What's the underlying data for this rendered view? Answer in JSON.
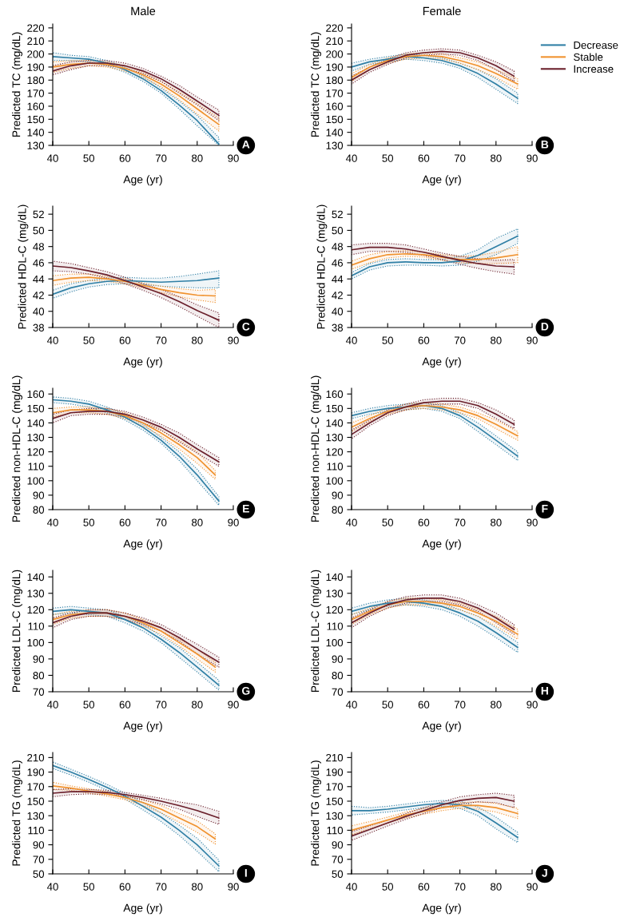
{
  "chart_data": [
    {
      "type": "line",
      "title": "Male",
      "xlabel": "Age (yr)",
      "ylabel": "Predicted TC (mg/dL)",
      "xlim": [
        40,
        90
      ],
      "xticks": [
        40,
        50,
        60,
        70,
        80,
        90
      ],
      "ylim": [
        130,
        223
      ],
      "yticks": [
        130,
        140,
        150,
        160,
        170,
        180,
        190,
        200,
        210,
        220
      ],
      "grid": false,
      "legend": false,
      "annotations": [
        "A"
      ],
      "x": [
        40,
        45,
        50,
        55,
        60,
        65,
        70,
        75,
        80,
        86
      ],
      "series": [
        {
          "color": "#2f7fa5",
          "values": [
            198,
            197,
            196,
            193,
            188,
            181,
            172,
            161,
            149,
            131
          ],
          "lower": [
            195,
            195,
            194,
            191,
            186,
            179,
            170,
            158,
            145,
            130
          ],
          "upper": [
            201,
            199,
            198,
            195,
            190,
            183,
            174,
            164,
            153,
            136
          ]
        },
        {
          "color": "#f0922e",
          "values": [
            190,
            192,
            193,
            192,
            189,
            184,
            177,
            168,
            158,
            146
          ],
          "lower": [
            186,
            189,
            191,
            190,
            187,
            182,
            175,
            165,
            154,
            141
          ],
          "upper": [
            194,
            195,
            195,
            194,
            191,
            186,
            179,
            171,
            162,
            151
          ]
        },
        {
          "color": "#6a1f2b",
          "values": [
            187,
            191,
            193,
            193,
            191,
            187,
            181,
            173,
            164,
            153
          ],
          "lower": [
            184,
            188,
            191,
            191,
            189,
            185,
            179,
            170,
            161,
            149
          ],
          "upper": [
            191,
            194,
            195,
            195,
            193,
            189,
            183,
            176,
            167,
            157
          ]
        }
      ]
    },
    {
      "type": "line",
      "title": "Female",
      "xlabel": "Age (yr)",
      "ylabel": "Predicted TC (mg/dL)",
      "xlim": [
        40,
        90
      ],
      "xticks": [
        40,
        50,
        60,
        70,
        80,
        90
      ],
      "ylim": [
        130,
        223
      ],
      "yticks": [
        130,
        140,
        150,
        160,
        170,
        180,
        190,
        200,
        210,
        220
      ],
      "grid": false,
      "legend": "right",
      "annotations": [
        "B"
      ],
      "x": [
        40,
        45,
        50,
        55,
        60,
        65,
        70,
        75,
        80,
        86
      ],
      "series": [
        {
          "name": "Decrease",
          "color": "#2f7fa5",
          "values": [
            190,
            194,
            196,
            198,
            197,
            195,
            191,
            185,
            177,
            166
          ],
          "lower": [
            187,
            192,
            194,
            196,
            195,
            193,
            189,
            182,
            173,
            162
          ],
          "upper": [
            193,
            196,
            198,
            200,
            199,
            197,
            193,
            188,
            181,
            170
          ]
        },
        {
          "name": "Stable",
          "color": "#f0922e",
          "values": [
            182,
            190,
            195,
            198,
            199,
            198,
            195,
            191,
            185,
            177
          ],
          "lower": [
            179,
            188,
            193,
            196,
            197,
            196,
            193,
            188,
            182,
            173
          ],
          "upper": [
            185,
            192,
            197,
            200,
            201,
            200,
            197,
            194,
            188,
            181
          ]
        },
        {
          "name": "Increase",
          "color": "#6a1f2b",
          "x": [
            40,
            45,
            50,
            55,
            60,
            65,
            70,
            75,
            80,
            85
          ],
          "values": [
            180,
            188,
            194,
            199,
            201,
            202,
            201,
            197,
            191,
            183
          ],
          "lower": [
            177,
            186,
            192,
            197,
            199,
            200,
            199,
            195,
            188,
            179
          ],
          "upper": [
            183,
            190,
            196,
            201,
            203,
            204,
            203,
            199,
            194,
            187
          ]
        }
      ]
    },
    {
      "type": "line",
      "xlabel": "Age (yr)",
      "ylabel": "Predicted HDL-C (mg/dL)",
      "xlim": [
        40,
        90
      ],
      "xticks": [
        40,
        50,
        60,
        70,
        80,
        90
      ],
      "ylim": [
        38,
        53
      ],
      "yticks": [
        38,
        40,
        42,
        44,
        46,
        48,
        50,
        52
      ],
      "grid": false,
      "legend": false,
      "annotations": [
        "C"
      ],
      "x": [
        40,
        45,
        50,
        55,
        60,
        65,
        70,
        75,
        80,
        86
      ],
      "series": [
        {
          "color": "#2f7fa5",
          "values": [
            42.1,
            42.9,
            43.4,
            43.7,
            43.8,
            43.7,
            43.6,
            43.7,
            43.8,
            44.1
          ],
          "lower": [
            41.6,
            42.4,
            43.0,
            43.3,
            43.4,
            43.3,
            43.1,
            43.0,
            42.9,
            42.9
          ],
          "upper": [
            42.6,
            43.4,
            43.8,
            44.1,
            44.2,
            44.1,
            44.1,
            44.3,
            44.6,
            45.0
          ]
        },
        {
          "color": "#f0922e",
          "x": [
            40,
            45,
            50,
            55,
            60,
            65,
            70,
            75,
            80,
            85
          ],
          "values": [
            43.8,
            44.1,
            44.2,
            44.0,
            43.7,
            43.2,
            42.7,
            42.3,
            42.0,
            41.9
          ],
          "lower": [
            43.2,
            43.6,
            43.8,
            43.7,
            43.4,
            42.9,
            42.3,
            41.8,
            41.4,
            41.1
          ],
          "upper": [
            44.4,
            44.6,
            44.6,
            44.3,
            44.0,
            43.5,
            43.1,
            42.8,
            42.6,
            42.7
          ]
        },
        {
          "color": "#6a1f2b",
          "values": [
            45.6,
            45.4,
            45.0,
            44.5,
            43.8,
            43.0,
            42.2,
            41.2,
            40.1,
            38.9
          ],
          "lower": [
            45.0,
            44.9,
            44.6,
            44.1,
            43.4,
            42.6,
            41.7,
            40.6,
            39.4,
            38.0
          ],
          "upper": [
            46.2,
            45.9,
            45.4,
            44.9,
            44.2,
            43.4,
            42.7,
            41.8,
            40.8,
            39.8
          ]
        }
      ]
    },
    {
      "type": "line",
      "xlabel": "Age (yr)",
      "ylabel": "Predicted HDL-C (mg/dL)",
      "xlim": [
        40,
        90
      ],
      "xticks": [
        40,
        50,
        60,
        70,
        80,
        90
      ],
      "ylim": [
        38,
        53
      ],
      "yticks": [
        38,
        40,
        42,
        44,
        46,
        48,
        50,
        52
      ],
      "grid": false,
      "legend": false,
      "annotations": [
        "D"
      ],
      "x": [
        40,
        45,
        50,
        55,
        60,
        65,
        70,
        75,
        80,
        86
      ],
      "series": [
        {
          "color": "#2f7fa5",
          "values": [
            44.4,
            45.5,
            46.0,
            46.1,
            46.0,
            46.0,
            46.2,
            46.9,
            48.0,
            49.3
          ],
          "lower": [
            44.0,
            45.1,
            45.6,
            45.7,
            45.7,
            45.6,
            45.7,
            46.2,
            47.0,
            48.4
          ],
          "upper": [
            44.8,
            45.9,
            46.4,
            46.5,
            46.4,
            46.4,
            46.8,
            47.6,
            49.0,
            50.2
          ]
        },
        {
          "color": "#f0922e",
          "values": [
            45.7,
            46.5,
            47.0,
            47.1,
            47.0,
            46.7,
            46.4,
            46.4,
            46.6,
            47.0
          ],
          "lower": [
            45.2,
            46.0,
            46.6,
            46.8,
            46.7,
            46.3,
            46.0,
            45.9,
            45.9,
            46.0
          ],
          "upper": [
            46.2,
            47.0,
            47.4,
            47.5,
            47.3,
            47.0,
            46.8,
            46.9,
            47.3,
            48.0
          ]
        },
        {
          "color": "#6a1f2b",
          "x": [
            40,
            45,
            50,
            55,
            60,
            65,
            70,
            75,
            80,
            85
          ],
          "values": [
            47.6,
            47.9,
            47.9,
            47.7,
            47.3,
            46.8,
            46.3,
            45.9,
            45.6,
            45.5
          ],
          "lower": [
            47.0,
            47.4,
            47.4,
            47.3,
            46.9,
            46.4,
            45.8,
            45.3,
            44.9,
            44.6
          ],
          "upper": [
            48.2,
            48.4,
            48.4,
            48.2,
            47.7,
            47.2,
            46.8,
            46.5,
            46.3,
            46.4
          ]
        }
      ]
    },
    {
      "type": "line",
      "xlabel": "Age (yr)",
      "ylabel": "Predicted non-HDL-C (mg/dL)",
      "xlim": [
        40,
        90
      ],
      "xticks": [
        40,
        50,
        60,
        70,
        80,
        90
      ],
      "ylim": [
        80,
        164
      ],
      "yticks": [
        80,
        90,
        100,
        110,
        120,
        130,
        140,
        150,
        160
      ],
      "grid": false,
      "legend": false,
      "annotations": [
        "E"
      ],
      "x": [
        40,
        45,
        50,
        55,
        60,
        65,
        70,
        75,
        80,
        86
      ],
      "series": [
        {
          "color": "#2f7fa5",
          "values": [
            156,
            155,
            153,
            149,
            144,
            137,
            128,
            117,
            104,
            86
          ],
          "lower": [
            154,
            153,
            151,
            147,
            142,
            135,
            126,
            114,
            100,
            83
          ],
          "upper": [
            158,
            157,
            155,
            151,
            146,
            139,
            130,
            120,
            108,
            89
          ]
        },
        {
          "color": "#f0922e",
          "x": [
            40,
            45,
            50,
            55,
            60,
            65,
            70,
            75,
            80,
            85
          ],
          "values": [
            147,
            149,
            149,
            148,
            145,
            140,
            133,
            125,
            116,
            104
          ],
          "lower": [
            144,
            147,
            147,
            146,
            143,
            138,
            131,
            122,
            112,
            101
          ],
          "upper": [
            150,
            151,
            151,
            150,
            147,
            142,
            135,
            128,
            120,
            107
          ]
        },
        {
          "color": "#6a1f2b",
          "values": [
            143,
            147,
            148,
            148,
            146,
            142,
            137,
            130,
            122,
            113
          ],
          "lower": [
            140,
            145,
            146,
            146,
            144,
            140,
            135,
            127,
            119,
            110
          ],
          "upper": [
            146,
            149,
            150,
            150,
            148,
            144,
            139,
            133,
            125,
            116
          ]
        }
      ]
    },
    {
      "type": "line",
      "xlabel": "Age (yr)",
      "ylabel": "Predicted non-HDL-C (mg/dL)",
      "xlim": [
        40,
        90
      ],
      "xticks": [
        40,
        50,
        60,
        70,
        80,
        90
      ],
      "ylim": [
        80,
        164
      ],
      "yticks": [
        80,
        90,
        100,
        110,
        120,
        130,
        140,
        150,
        160
      ],
      "grid": false,
      "legend": false,
      "annotations": [
        "F"
      ],
      "x": [
        40,
        45,
        50,
        55,
        60,
        65,
        70,
        75,
        80,
        86
      ],
      "series": [
        {
          "color": "#2f7fa5",
          "values": [
            145,
            148,
            150,
            151,
            152,
            150,
            145,
            137,
            128,
            117
          ],
          "lower": [
            143,
            146,
            148,
            149,
            150,
            148,
            143,
            134,
            125,
            114
          ],
          "upper": [
            147,
            150,
            152,
            153,
            154,
            152,
            147,
            140,
            131,
            120
          ]
        },
        {
          "color": "#f0922e",
          "values": [
            137,
            143,
            148,
            151,
            152,
            151,
            149,
            145,
            139,
            131
          ],
          "lower": [
            134,
            141,
            146,
            149,
            150,
            149,
            147,
            143,
            136,
            128
          ],
          "upper": [
            140,
            145,
            150,
            153,
            154,
            153,
            151,
            147,
            142,
            134
          ]
        },
        {
          "color": "#6a1f2b",
          "x": [
            40,
            45,
            50,
            55,
            60,
            65,
            70,
            75,
            80,
            85
          ],
          "values": [
            132,
            140,
            147,
            151,
            154,
            155,
            155,
            152,
            146,
            139
          ],
          "lower": [
            129,
            138,
            145,
            149,
            152,
            153,
            153,
            150,
            143,
            136
          ],
          "upper": [
            135,
            142,
            149,
            153,
            156,
            157,
            157,
            154,
            149,
            142
          ]
        }
      ]
    },
    {
      "type": "line",
      "xlabel": "Age (yr)",
      "ylabel": "Predicted LDL-C (mg/dL)",
      "xlim": [
        40,
        90
      ],
      "xticks": [
        40,
        50,
        60,
        70,
        80,
        90
      ],
      "ylim": [
        70,
        144
      ],
      "yticks": [
        70,
        80,
        90,
        100,
        110,
        120,
        130,
        140
      ],
      "grid": false,
      "legend": false,
      "annotations": [
        "G"
      ],
      "x": [
        40,
        45,
        50,
        55,
        60,
        65,
        70,
        75,
        80,
        86
      ],
      "series": [
        {
          "color": "#2f7fa5",
          "values": [
            119,
            120,
            119,
            118,
            114,
            109,
            102,
            94,
            85,
            74
          ],
          "lower": [
            117,
            118,
            117,
            116,
            112,
            107,
            100,
            91,
            82,
            71
          ],
          "upper": [
            121,
            122,
            121,
            120,
            116,
            111,
            104,
            97,
            88,
            77
          ]
        },
        {
          "color": "#f0922e",
          "x": [
            40,
            45,
            50,
            55,
            60,
            65,
            70,
            75,
            80,
            85
          ],
          "values": [
            114,
            117,
            118,
            118,
            116,
            112,
            107,
            100,
            93,
            85
          ],
          "lower": [
            111,
            115,
            116,
            116,
            114,
            110,
            105,
            98,
            90,
            82
          ],
          "upper": [
            117,
            119,
            120,
            120,
            118,
            114,
            109,
            102,
            96,
            88
          ]
        },
        {
          "color": "#6a1f2b",
          "values": [
            112,
            116,
            118,
            118,
            116,
            113,
            109,
            103,
            96,
            88
          ],
          "lower": [
            109,
            114,
            116,
            116,
            114,
            111,
            107,
            101,
            93,
            85
          ],
          "upper": [
            115,
            118,
            120,
            120,
            118,
            115,
            111,
            105,
            99,
            91
          ]
        }
      ]
    },
    {
      "type": "line",
      "xlabel": "Age (yr)",
      "ylabel": "Predicted LDL-C (mg/dL)",
      "xlim": [
        40,
        90
      ],
      "xticks": [
        40,
        50,
        60,
        70,
        80,
        90
      ],
      "ylim": [
        70,
        144
      ],
      "yticks": [
        70,
        80,
        90,
        100,
        110,
        120,
        130,
        140
      ],
      "grid": false,
      "legend": false,
      "annotations": [
        "H"
      ],
      "x": [
        40,
        45,
        50,
        55,
        60,
        65,
        70,
        75,
        80,
        86
      ],
      "series": [
        {
          "color": "#2f7fa5",
          "values": [
            119,
            122,
            124,
            125,
            124,
            122,
            118,
            113,
            106,
            97
          ],
          "lower": [
            117,
            120,
            122,
            123,
            122,
            120,
            116,
            110,
            103,
            94
          ],
          "upper": [
            121,
            124,
            126,
            127,
            126,
            124,
            120,
            116,
            109,
            100
          ]
        },
        {
          "color": "#f0922e",
          "values": [
            114,
            119,
            123,
            125,
            125,
            124,
            122,
            118,
            113,
            105
          ],
          "lower": [
            111,
            117,
            121,
            123,
            123,
            122,
            120,
            116,
            110,
            102
          ],
          "upper": [
            117,
            121,
            125,
            127,
            127,
            126,
            124,
            120,
            116,
            108
          ]
        },
        {
          "color": "#6a1f2b",
          "x": [
            40,
            45,
            50,
            55,
            60,
            65,
            70,
            75,
            80,
            85
          ],
          "values": [
            112,
            118,
            123,
            126,
            127,
            127,
            125,
            121,
            115,
            108
          ],
          "lower": [
            109,
            116,
            121,
            124,
            125,
            125,
            123,
            119,
            112,
            105
          ],
          "upper": [
            115,
            120,
            125,
            128,
            129,
            129,
            127,
            123,
            118,
            111
          ]
        }
      ]
    },
    {
      "type": "line",
      "xlabel": "Age (yr)",
      "ylabel": "Predicted TG (mg/dL)",
      "xlim": [
        40,
        90
      ],
      "xticks": [
        40,
        50,
        60,
        70,
        80,
        90
      ],
      "ylim": [
        50,
        217
      ],
      "yticks": [
        50,
        70,
        90,
        110,
        130,
        150,
        170,
        190,
        210
      ],
      "grid": false,
      "legend": false,
      "annotations": [
        "I"
      ],
      "x": [
        40,
        45,
        50,
        55,
        60,
        65,
        70,
        75,
        80,
        86
      ],
      "series": [
        {
          "color": "#2f7fa5",
          "values": [
            199,
            190,
            180,
            169,
            157,
            143,
            128,
            110,
            90,
            61
          ],
          "lower": [
            195,
            186,
            176,
            165,
            153,
            138,
            122,
            103,
            81,
            53
          ],
          "upper": [
            204,
            194,
            184,
            173,
            161,
            148,
            134,
            117,
            99,
            69
          ]
        },
        {
          "color": "#f0922e",
          "x": [
            40,
            45,
            50,
            55,
            60,
            65,
            70,
            75,
            80,
            85
          ],
          "values": [
            171,
            168,
            164,
            160,
            155,
            148,
            139,
            127,
            115,
            98
          ],
          "lower": [
            166,
            165,
            161,
            157,
            152,
            144,
            134,
            121,
            107,
            91
          ],
          "upper": [
            176,
            171,
            167,
            163,
            158,
            152,
            144,
            133,
            123,
            105
          ]
        },
        {
          "color": "#6a1f2b",
          "values": [
            161,
            163,
            163,
            162,
            159,
            155,
            150,
            144,
            137,
            127
          ],
          "lower": [
            156,
            159,
            160,
            159,
            157,
            152,
            146,
            139,
            129,
            118
          ],
          "upper": [
            166,
            167,
            166,
            165,
            162,
            158,
            154,
            149,
            145,
            136
          ]
        }
      ]
    },
    {
      "type": "line",
      "xlabel": "Age (yr)",
      "ylabel": "Predicted TG (mg/dL)",
      "xlim": [
        40,
        90
      ],
      "xticks": [
        40,
        50,
        60,
        70,
        80,
        90
      ],
      "ylim": [
        50,
        217
      ],
      "yticks": [
        50,
        70,
        90,
        110,
        130,
        150,
        170,
        190,
        210
      ],
      "grid": false,
      "legend": false,
      "annotations": [
        "J"
      ],
      "x": [
        40,
        45,
        50,
        55,
        60,
        65,
        70,
        75,
        80,
        86
      ],
      "series": [
        {
          "color": "#2f7fa5",
          "values": [
            137,
            137,
            139,
            142,
            145,
            147,
            145,
            136,
            120,
            100
          ],
          "lower": [
            131,
            133,
            135,
            138,
            141,
            143,
            140,
            130,
            112,
            93
          ],
          "upper": [
            143,
            141,
            143,
            146,
            149,
            151,
            150,
            142,
            128,
            107
          ]
        },
        {
          "color": "#f0922e",
          "values": [
            110,
            117,
            124,
            131,
            136,
            141,
            144,
            144,
            141,
            133
          ],
          "lower": [
            104,
            112,
            120,
            127,
            132,
            137,
            140,
            139,
            135,
            126
          ],
          "upper": [
            116,
            122,
            128,
            135,
            140,
            145,
            148,
            149,
            147,
            140
          ]
        },
        {
          "color": "#6a1f2b",
          "x": [
            40,
            45,
            50,
            55,
            60,
            65,
            70,
            75,
            80,
            85
          ],
          "values": [
            102,
            111,
            120,
            129,
            137,
            145,
            151,
            154,
            155,
            150
          ],
          "lower": [
            96,
            106,
            116,
            125,
            133,
            141,
            146,
            149,
            148,
            141
          ],
          "upper": [
            108,
            116,
            124,
            133,
            141,
            149,
            156,
            159,
            161,
            158
          ]
        }
      ]
    }
  ]
}
